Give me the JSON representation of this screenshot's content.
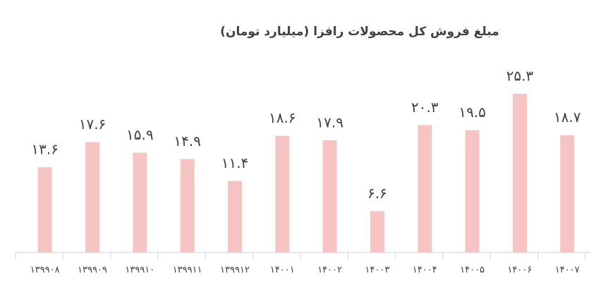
{
  "chart_data": {
    "type": "bar",
    "title": "مبلغ فروش کل محصولات رافزا (میلیارد تومان)",
    "categories": [
      "۱۳۹۹۰۸",
      "۱۳۹۹۰۹",
      "۱۳۹۹۱۰",
      "۱۳۹۹۱۱",
      "۱۳۹۹۱۲",
      "۱۴۰۰۱",
      "۱۴۰۰۲",
      "۱۴۰۰۳",
      "۱۴۰۰۴",
      "۱۴۰۰۵",
      "۱۴۰۰۶",
      "۱۴۰۰۷"
    ],
    "values": [
      13.6,
      17.6,
      15.9,
      14.9,
      11.4,
      18.6,
      17.9,
      6.6,
      20.3,
      19.5,
      25.3,
      18.7
    ],
    "value_labels": [
      "۱۳.۶",
      "۱۷.۶",
      "۱۵.۹",
      "۱۴.۹",
      "۱۱.۴",
      "۱۸.۶",
      "۱۷.۹",
      "۶.۶",
      "۲۰.۳",
      "۱۹.۵",
      "۲۵.۳",
      "۱۸.۷"
    ],
    "color": "#f7c4c4"
  }
}
